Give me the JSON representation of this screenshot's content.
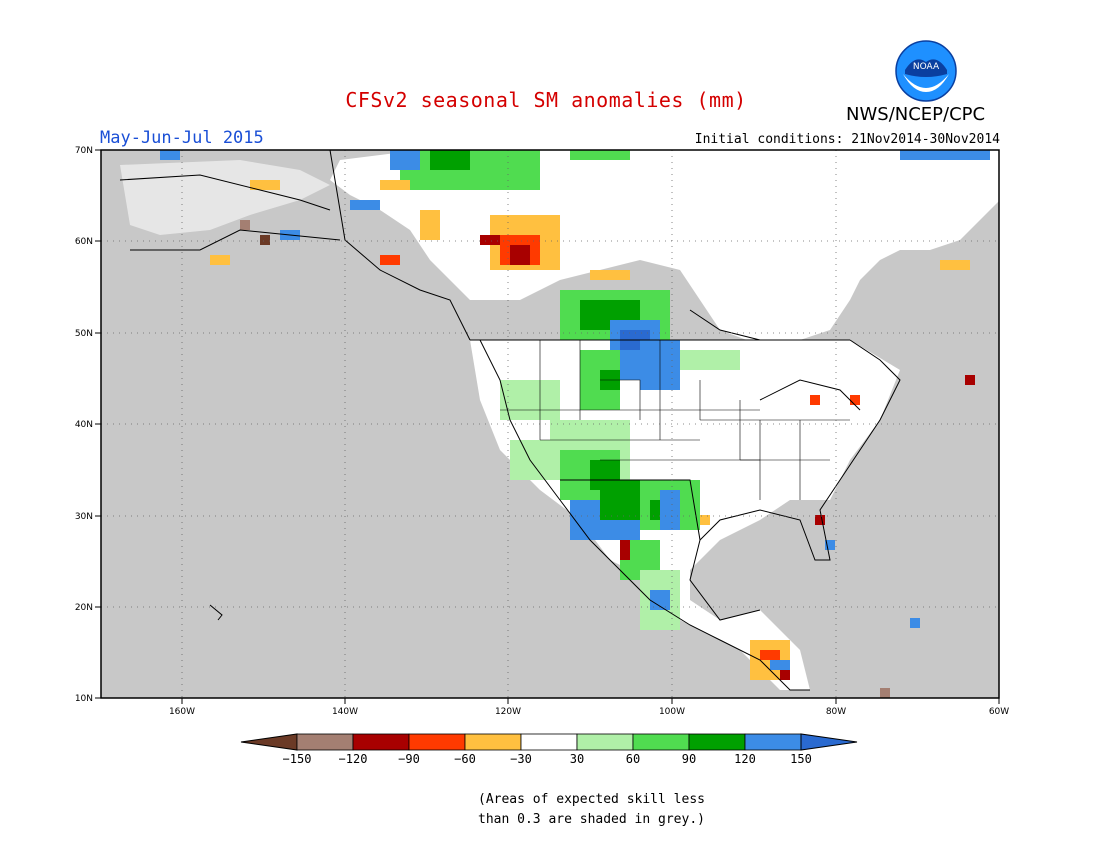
{
  "title": "CFSv2 seasonal SM anomalies (mm)",
  "period": "May-Jun-Jul 2015",
  "initial_conditions": "Initial conditions: 21Nov2014-30Nov2014",
  "agency": "NWS/NCEP/CPC",
  "logo_text": "NOAA",
  "lat_labels": [
    "70N",
    "60N",
    "50N",
    "40N",
    "30N",
    "20N",
    "10N"
  ],
  "lon_labels": [
    "160W",
    "140W",
    "120W",
    "100W",
    "80W",
    "60W"
  ],
  "colorbar": {
    "labels": [
      "-150",
      "-120",
      "-90",
      "-60",
      "-30",
      "30",
      "60",
      "90",
      "120",
      "150"
    ],
    "colors": [
      "#6b3a26",
      "#a47f72",
      "#a80000",
      "#ff3a00",
      "#ffc040",
      "#ffffff",
      "#b0f0a8",
      "#50dc50",
      "#00a000",
      "#3c8ce6",
      "#2a6ad0"
    ]
  },
  "footnote_line1": "(Areas of expected skill less",
  "footnote_line2": "than 0.3 are shaded in grey.)",
  "colors": {
    "title": "#d40000",
    "period": "#1a4fd6",
    "no_skill_grey": "#c8c8c8"
  }
}
